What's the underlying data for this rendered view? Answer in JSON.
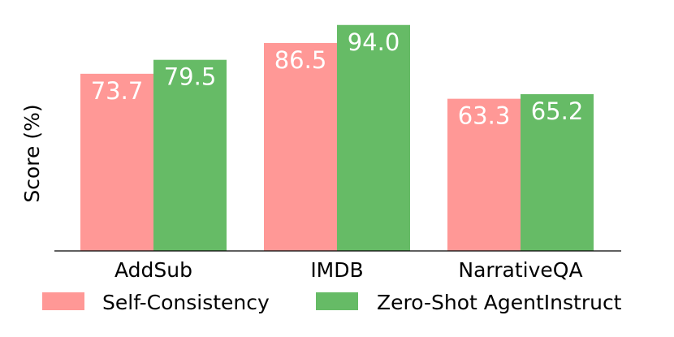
{
  "chart_data": {
    "type": "bar",
    "categories": [
      "AddSub",
      "IMDB",
      "NarrativeQA"
    ],
    "series": [
      {
        "name": "Self-Consistency",
        "values": [
          73.7,
          86.5,
          63.3
        ],
        "color": "#ff9896"
      },
      {
        "name": "Zero-Shot AgentInstruct",
        "values": [
          79.5,
          94.0,
          65.2
        ],
        "color": "#66bb66"
      }
    ],
    "value_labels": [
      [
        "73.7",
        "86.5",
        "63.3"
      ],
      [
        "79.5",
        "94.0",
        "65.2"
      ]
    ],
    "ylabel": "Score (%)",
    "ylim": [
      0,
      100
    ],
    "grid": false,
    "legend_position": "bottom"
  }
}
